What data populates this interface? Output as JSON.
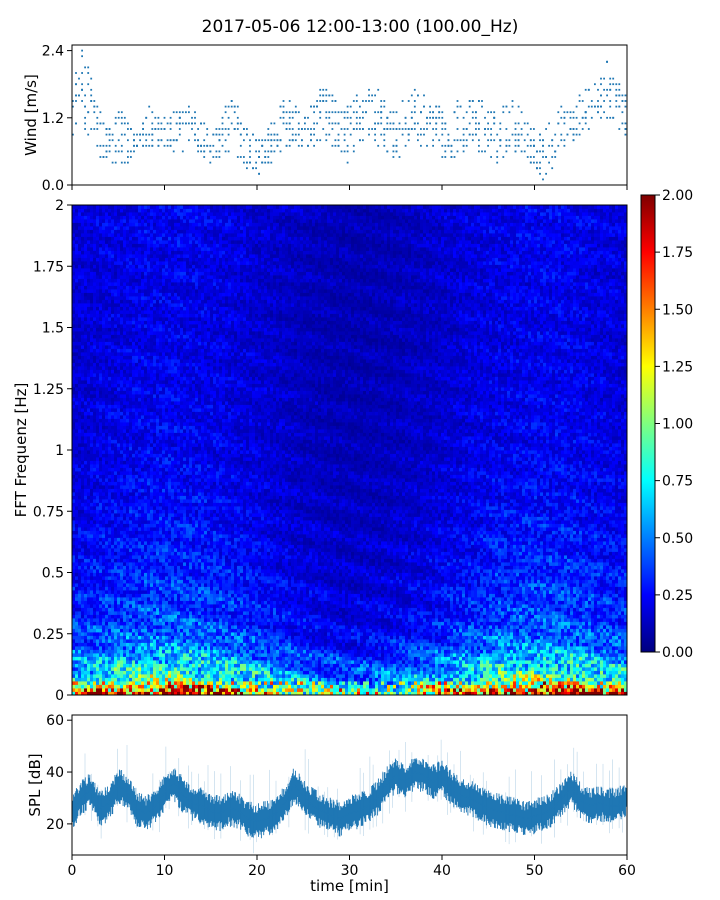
{
  "figure_title": "2017-05-06 12:00-13:00 (100.00_Hz)",
  "colors": {
    "series": "#1f77b4",
    "colormap": [
      "#00007f",
      "#0000ff",
      "#007fff",
      "#00ffff",
      "#7fff7f",
      "#ffff00",
      "#ff7f00",
      "#ff0000",
      "#7f0000"
    ]
  },
  "chart_data": [
    {
      "type": "scatter",
      "ylabel": "Wind [m/s]",
      "xlim": [
        0,
        60
      ],
      "ylim": [
        0,
        2.5
      ],
      "yticks": [
        "0.0",
        "1.2",
        "2.4"
      ],
      "ytick_values": [
        0,
        1.2,
        2.4
      ],
      "grid": false,
      "marker": "small dots",
      "profile": {
        "x": [
          0,
          1,
          2,
          3,
          4,
          5,
          6,
          7,
          8,
          9,
          10,
          11,
          12,
          13,
          14,
          15,
          16,
          17,
          18,
          19,
          20,
          21,
          22,
          23,
          24,
          25,
          26,
          27,
          28,
          29,
          30,
          31,
          32,
          33,
          34,
          35,
          36,
          37,
          38,
          39,
          40,
          41,
          42,
          43,
          44,
          45,
          46,
          47,
          48,
          49,
          50,
          51,
          52,
          53,
          54,
          55,
          56,
          57,
          58,
          59,
          60
        ],
        "low": [
          0.9,
          1.2,
          0.8,
          0.4,
          0.3,
          0.3,
          0.4,
          0.5,
          0.6,
          0.7,
          0.6,
          0.5,
          0.6,
          0.7,
          0.5,
          0.4,
          0.5,
          0.6,
          0.5,
          0.3,
          0.2,
          0.3,
          0.5,
          0.6,
          0.7,
          0.6,
          0.7,
          0.8,
          0.7,
          0.5,
          0.4,
          0.6,
          0.8,
          0.7,
          0.5,
          0.4,
          0.6,
          0.8,
          0.7,
          0.6,
          0.5,
          0.4,
          0.6,
          0.7,
          0.6,
          0.5,
          0.4,
          0.5,
          0.6,
          0.5,
          0.3,
          0.1,
          0.3,
          0.6,
          0.8,
          0.9,
          1.0,
          1.1,
          1.2,
          1.0,
          0.9
        ],
        "high": [
          1.8,
          2.4,
          2.0,
          1.4,
          1.0,
          1.5,
          1.1,
          0.9,
          1.6,
          1.5,
          1.2,
          1.3,
          1.4,
          1.5,
          1.2,
          1.0,
          1.1,
          1.6,
          1.5,
          1.0,
          0.8,
          1.0,
          1.2,
          1.6,
          1.4,
          1.2,
          1.5,
          1.8,
          1.6,
          1.4,
          1.5,
          1.7,
          1.8,
          1.7,
          1.5,
          1.3,
          1.6,
          1.7,
          1.6,
          1.5,
          1.3,
          1.4,
          1.5,
          1.5,
          1.6,
          1.4,
          1.3,
          1.6,
          1.5,
          1.3,
          1.1,
          1.0,
          1.2,
          1.4,
          1.5,
          1.6,
          1.8,
          1.9,
          2.3,
          1.9,
          1.5
        ]
      }
    },
    {
      "type": "heatmap",
      "ylabel": "FFT Frequenz [Hz]",
      "xlim": [
        0,
        60
      ],
      "ylim": [
        0,
        2
      ],
      "yticks": [
        "0",
        "0.25",
        "0.5",
        "0.75",
        "1",
        "1.25",
        "1.5",
        "1.75",
        "2"
      ],
      "ytick_values": [
        0,
        0.25,
        0.5,
        0.75,
        1,
        1.25,
        1.5,
        1.75,
        2
      ],
      "colorbar": {
        "range": [
          0,
          2
        ],
        "ticks": [
          "0.00",
          "0.25",
          "0.50",
          "0.75",
          "1.00",
          "1.25",
          "1.50",
          "1.75",
          "2.00"
        ],
        "tick_values": [
          0,
          0.25,
          0.5,
          0.75,
          1,
          1.25,
          1.5,
          1.75,
          2
        ],
        "colormap": "jet"
      },
      "typical_level_by_frequency": {
        "f": [
          0,
          0.05,
          0.1,
          0.2,
          0.3,
          0.5,
          0.75,
          1.0,
          1.5,
          2.0
        ],
        "value": [
          1.6,
          0.9,
          0.7,
          0.45,
          0.35,
          0.28,
          0.23,
          0.2,
          0.18,
          0.2
        ]
      }
    },
    {
      "type": "line",
      "xlabel": "time [min]",
      "ylabel": "SPL [dB]",
      "xlim": [
        0,
        60
      ],
      "ylim": [
        8,
        62
      ],
      "xticks": [
        "0",
        "10",
        "20",
        "30",
        "40",
        "50",
        "60"
      ],
      "xtick_values": [
        0,
        10,
        20,
        30,
        40,
        50,
        60
      ],
      "yticks": [
        "20",
        "40",
        "60"
      ],
      "ytick_values": [
        20,
        40,
        60
      ],
      "grid": false,
      "x": [
        0,
        1,
        2,
        3,
        4,
        5,
        6,
        7,
        8,
        9,
        10,
        11,
        12,
        13,
        14,
        15,
        16,
        17,
        18,
        19,
        20,
        21,
        22,
        23,
        24,
        25,
        26,
        27,
        28,
        29,
        30,
        31,
        32,
        33,
        34,
        35,
        36,
        37,
        38,
        39,
        40,
        41,
        42,
        43,
        44,
        45,
        46,
        47,
        48,
        49,
        50,
        51,
        52,
        53,
        54,
        55,
        56,
        57,
        58,
        59,
        60
      ],
      "y": [
        24,
        30,
        33,
        26,
        28,
        35,
        32,
        26,
        24,
        27,
        32,
        36,
        31,
        28,
        27,
        25,
        24,
        26,
        25,
        22,
        21,
        22,
        24,
        28,
        35,
        31,
        27,
        25,
        23,
        22,
        24,
        25,
        27,
        30,
        35,
        39,
        36,
        40,
        39,
        36,
        38,
        34,
        31,
        30,
        28,
        26,
        25,
        24,
        23,
        22,
        23,
        24,
        26,
        30,
        34,
        29,
        27,
        28,
        27,
        27,
        30
      ]
    }
  ]
}
